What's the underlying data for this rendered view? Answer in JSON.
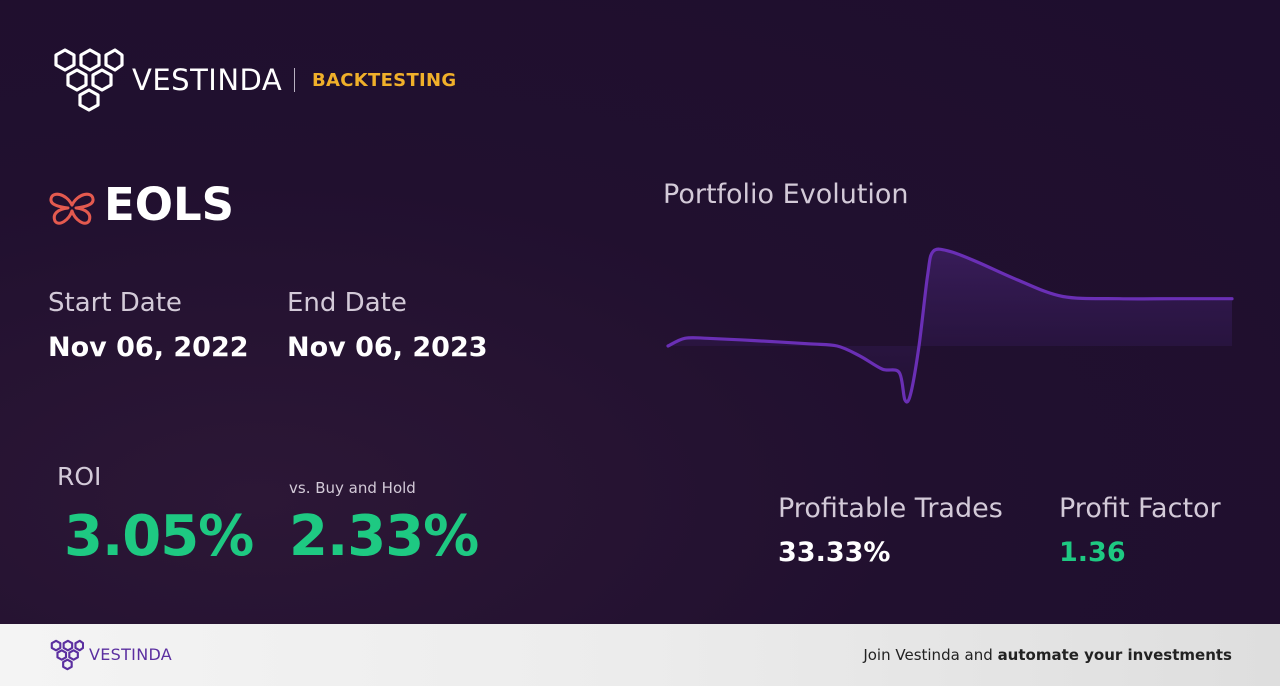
{
  "header": {
    "brand": "VESTINDA",
    "tag": "BACKTESTING",
    "tag_color": "#f0b02a"
  },
  "strategy": {
    "name": "EOLS",
    "icon": "butterfly-icon",
    "icon_color": "#e45a4f"
  },
  "dates": {
    "start_label": "Start Date",
    "start_value": "Nov 06, 2022",
    "end_label": "End Date",
    "end_value": "Nov 06, 2023"
  },
  "returns": {
    "roi_label": "ROI",
    "roi_value": "3.05%",
    "vs_label": "vs. Buy and Hold",
    "vs_value": "2.33%",
    "positive_color": "#1ec982"
  },
  "chart_data": {
    "type": "area",
    "title": "Portfolio Evolution",
    "series_color": "#6a2fb5",
    "x": [
      0,
      0.03,
      0.07,
      0.15,
      0.25,
      0.3,
      0.34,
      0.38,
      0.41,
      0.42,
      0.43,
      0.445,
      0.46,
      0.47,
      0.5,
      0.55,
      0.62,
      0.7,
      0.8,
      0.9,
      1.0
    ],
    "values": [
      0.0,
      0.07,
      0.07,
      0.05,
      0.02,
      0.0,
      -0.09,
      -0.21,
      -0.24,
      -0.49,
      -0.44,
      0.0,
      0.63,
      0.86,
      0.86,
      0.76,
      0.6,
      0.45,
      0.43,
      0.43,
      0.43
    ],
    "grid": false,
    "legend": false
  },
  "stats": {
    "profitable_label": "Profitable Trades",
    "profitable_value": "33.33%",
    "pf_label": "Profit Factor",
    "pf_value": "1.36"
  },
  "footer": {
    "brand": "VESTINDA",
    "cta_prefix": "Join Vestinda and",
    "cta_bold": "automate your investments"
  }
}
